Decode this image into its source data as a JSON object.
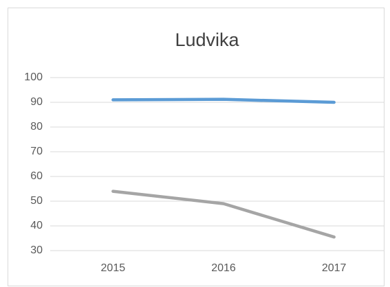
{
  "chart_data": {
    "type": "line",
    "title": "Ludvika",
    "categories": [
      "2015",
      "2016",
      "2017"
    ],
    "series": [
      {
        "color": "#5b9bd5",
        "values": [
          91,
          91.2,
          90
        ]
      },
      {
        "color": "#a5a5a5",
        "values": [
          54,
          49,
          35.5
        ]
      }
    ],
    "ylim": [
      30,
      100
    ],
    "yticks": [
      30,
      40,
      50,
      60,
      70,
      80,
      90,
      100
    ],
    "grid": true
  }
}
